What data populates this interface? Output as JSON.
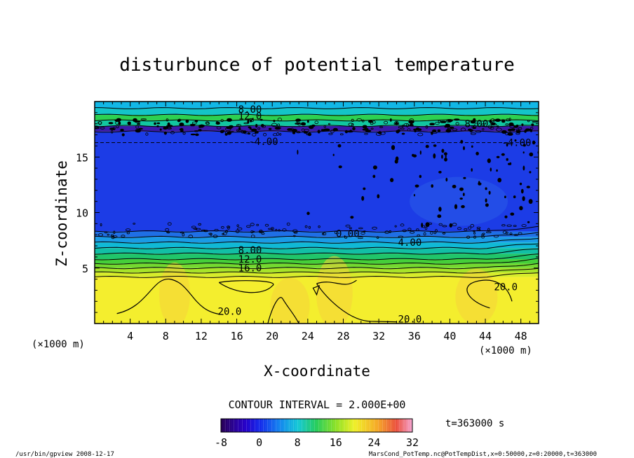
{
  "chart_data": {
    "type": "contour",
    "title": "disturbunce of potential temperature",
    "xlabel": "X-coordinate",
    "ylabel": "Z-coordinate",
    "x_unit": "(×1000 m)",
    "x_unit_right": "(×1000 m)",
    "xlim": [
      0,
      50
    ],
    "ylim": [
      0,
      20
    ],
    "x_ticks": [
      "4",
      "8",
      "12",
      "16",
      "20",
      "24",
      "28",
      "32",
      "36",
      "40",
      "44",
      "48"
    ],
    "y_ticks": [
      "5",
      "10",
      "15"
    ],
    "contour_interval": "CONTOUR INTERVAL = 2.000E+00",
    "time_label": "t=363000 s",
    "colorbar": {
      "min": -8,
      "max": 32,
      "ticks": [
        "-8",
        "0",
        "8",
        "16",
        "24",
        "32"
      ]
    },
    "layers": [
      {
        "z0": 0,
        "z1": 4.2,
        "value": 22,
        "color": "#f4ee2e"
      },
      {
        "z0": 4.2,
        "z1": 4.6,
        "value": 18,
        "color": "#d7ec2b"
      },
      {
        "z0": 4.6,
        "z1": 5.0,
        "value": 16,
        "color": "#a8e32a"
      },
      {
        "z0": 5.0,
        "z1": 5.4,
        "value": 14,
        "color": "#74d930"
      },
      {
        "z0": 5.4,
        "z1": 5.8,
        "value": 12,
        "color": "#45cf3a"
      },
      {
        "z0": 5.8,
        "z1": 6.3,
        "value": 10,
        "color": "#20c56a"
      },
      {
        "z0": 6.3,
        "z1": 6.8,
        "value": 8,
        "color": "#12bfa5"
      },
      {
        "z0": 6.8,
        "z1": 7.3,
        "value": 6,
        "color": "#10b9d6"
      },
      {
        "z0": 7.3,
        "z1": 7.8,
        "value": 4,
        "color": "#1a9be6"
      },
      {
        "z0": 7.8,
        "z1": 8.3,
        "value": 2,
        "color": "#1f6fe6"
      },
      {
        "z0": 8.3,
        "z1": 17.3,
        "value": -2,
        "color": "#1c3ce6"
      },
      {
        "z0": 17.3,
        "z1": 17.8,
        "value": -6,
        "color": "#3a1aa8"
      },
      {
        "z0": 17.8,
        "z1": 18.3,
        "value": 6,
        "color": "#12c6a0"
      },
      {
        "z0": 18.3,
        "z1": 18.8,
        "value": 10,
        "color": "#2dd050"
      },
      {
        "z0": 18.8,
        "z1": 19.4,
        "value": 8,
        "color": "#14c4c8"
      },
      {
        "z0": 19.4,
        "z1": 20.0,
        "value": 6,
        "color": "#12b7e6"
      }
    ],
    "contour_labels": [
      {
        "x": 17.5,
        "z": 19.0,
        "text": "8.00"
      },
      {
        "x": 17.5,
        "z": 18.4,
        "text": "12.0"
      },
      {
        "x": 43.0,
        "z": 17.7,
        "text": "8.00"
      },
      {
        "x": 19.0,
        "z": 16.1,
        "text": "-4.00"
      },
      {
        "x": 47.5,
        "z": 16.0,
        "text": "-4.00"
      },
      {
        "x": 28.5,
        "z": 7.8,
        "text": "0.00"
      },
      {
        "x": 35.5,
        "z": 7.0,
        "text": "4.00"
      },
      {
        "x": 17.5,
        "z": 6.3,
        "text": "8.00"
      },
      {
        "x": 17.5,
        "z": 5.5,
        "text": "12.0"
      },
      {
        "x": 17.5,
        "z": 4.7,
        "text": "16.0"
      },
      {
        "x": 15.2,
        "z": 0.8,
        "text": "20.0"
      },
      {
        "x": 35.5,
        "z": 0.1,
        "text": "20.0"
      },
      {
        "x": 46.3,
        "z": 3.0,
        "text": "20.0"
      }
    ]
  },
  "footer": {
    "left": "/usr/bin/gpview   2008-12-17",
    "right": "MarsCond_PotTemp.nc@PotTempDist,x=0:50000,z=0:20000,t=363000"
  }
}
